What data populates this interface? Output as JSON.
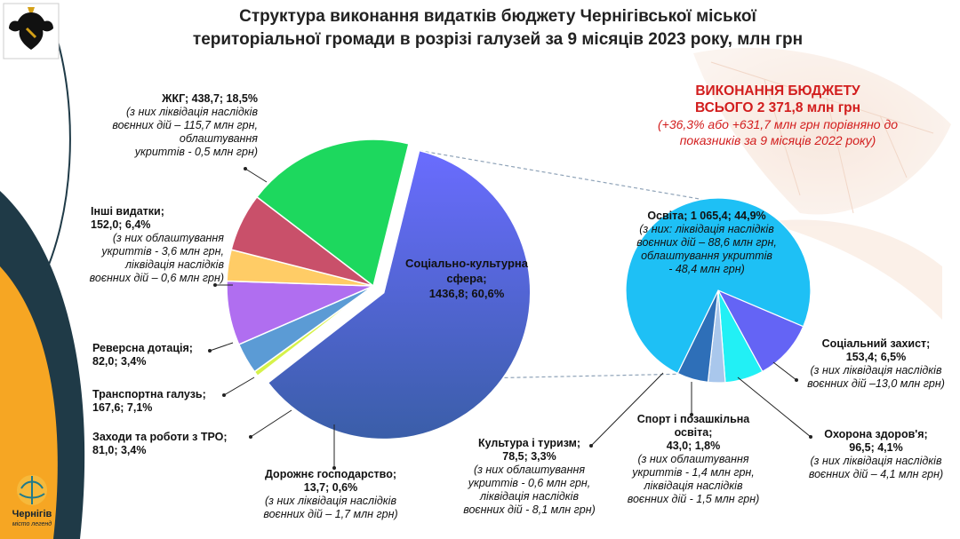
{
  "title_line1": "Структура виконання видатків бюджету Чернігівської міської",
  "title_line2": "територіальної громади в розрізі галузей за 9 місяців 2023 року, млн грн",
  "summary": {
    "line1": "ВИКОНАННЯ БЮДЖЕТУ",
    "line2": "ВСЬОГО 2 371,8 млн грн",
    "line3": "(+36,3% або +631,7 млн грн порівняно до",
    "line4": "показників за 9 місяців 2022 року)"
  },
  "logo": {
    "name": "Чернігів",
    "sub": "місто легенд"
  },
  "labels": {
    "zhkg": {
      "head": "ЖКГ;  438,7; 18,5%",
      "n1": "(з них ліквідація наслідків",
      "n2": "воєнних дій – 115,7 млн грн,",
      "n3": "облаштування",
      "n4": "укриттів - 0,5 млн грн)"
    },
    "inshi": {
      "h1": "Інші видатки;",
      "h2": "152,0; 6,4%",
      "n1": "(з них облаштування",
      "n2": "укриттів - 3,6 млн грн,",
      "n3": "ліквідація наслідків",
      "n4": "воєнних дій – 0,6 млн грн)"
    },
    "reverse": {
      "h1": "Реверсна дотація;",
      "h2": "82,0; 3,4%"
    },
    "transport": {
      "h1": "Транспортна галузь;",
      "h2": "167,6; 7,1%"
    },
    "tro": {
      "h1": "Заходи та роботи з ТРО;",
      "h2": "81,0; 3,4%"
    },
    "road": {
      "h1": "Дорожнє господарство;",
      "h2": "13,7; 0,6%",
      "n1": "(з них ліквідація наслідків",
      "n2": "воєнних дій – 1,7 млн грн)"
    },
    "social_culture": {
      "l1": "Соціально-культурна",
      "l2": "сфера;",
      "l3": "1436,8; 60,6%"
    },
    "osvita": {
      "head": "Освіта; 1 065,4; 44,9%",
      "n1": "(з них: ліквідація наслідків",
      "n2": "воєнних дій – 88,6 млн грн,",
      "n3": "облаштування укриттів",
      "n4": "- 48,4 млн грн)"
    },
    "social_protect": {
      "h1": "Соціальний захист;",
      "h2": "153,4; 6,5%",
      "n1": "(з них ліквідація наслідків",
      "n2": "воєнних дій –13,0 млн грн)"
    },
    "health": {
      "h1": "Охорона здоров'я;",
      "h2": "96,5; 4,1%",
      "n1": "(з них ліквідація наслідків",
      "n2": "воєнних дій – 4,1 млн грн)"
    },
    "sport": {
      "h1": "Спорт і позашкільна",
      "h2": "освіта;",
      "h3": "43,0; 1,8%",
      "n1": "(з них облаштування",
      "n2": "укриттів - 1,4 млн грн,",
      "n3": "ліквідація наслідків",
      "n4": "воєнних дій - 1,5 млн грн)"
    },
    "culture": {
      "h1": "Культура і туризм;",
      "h2": "78,5; 3,3%",
      "n1": "(з них облаштування",
      "n2": "укриттів - 0,6 млн грн,",
      "n3": "ліквідація наслідків",
      "n4": "воєнних дій - 8,1 млн грн)"
    }
  },
  "chart_data": [
    {
      "type": "pie",
      "units": "млн грн",
      "slices": [
        {
          "key": "social_culture",
          "label": "Соціально-культурна сфера",
          "value": 1436.8,
          "percent": 60.6,
          "color": "#5a6ef0",
          "exploded": true
        },
        {
          "key": "road",
          "label": "Дорожнє господарство",
          "value": 13.7,
          "percent": 0.6,
          "color": "#d6f24a"
        },
        {
          "key": "tro",
          "label": "Заходи та роботи з ТРО",
          "value": 81.0,
          "percent": 3.4,
          "color": "#5b9bd5"
        },
        {
          "key": "transport",
          "label": "Транспортна галузь",
          "value": 167.6,
          "percent": 7.1,
          "color": "#b06ef0"
        },
        {
          "key": "reverse",
          "label": "Реверсна дотація",
          "value": 82.0,
          "percent": 3.4,
          "color": "#ffcc66"
        },
        {
          "key": "inshi",
          "label": "Інші видатки",
          "value": 152.0,
          "percent": 6.4,
          "color": "#c9506a"
        },
        {
          "key": "zhkg",
          "label": "ЖКГ",
          "value": 438.7,
          "percent": 18.5,
          "color": "#1dd85e"
        }
      ]
    },
    {
      "type": "pie",
      "units": "млн грн",
      "parent": "Соціально-культурна сфера",
      "slices": [
        {
          "key": "social_protect",
          "label": "Соціальний захист",
          "value": 153.4,
          "percent": 6.5,
          "color": "#6464f5"
        },
        {
          "key": "health",
          "label": "Охорона здоров'я",
          "value": 96.5,
          "percent": 4.1,
          "color": "#22f0f5"
        },
        {
          "key": "sport",
          "label": "Спорт і позашкільна освіта",
          "value": 43.0,
          "percent": 1.8,
          "color": "#a9c7ec"
        },
        {
          "key": "culture",
          "label": "Культура і туризм",
          "value": 78.5,
          "percent": 3.3,
          "color": "#2e6fb8"
        },
        {
          "key": "osvita",
          "label": "Освіта",
          "value": 1065.4,
          "percent": 44.9,
          "color": "#1ec0f5"
        }
      ]
    }
  ]
}
